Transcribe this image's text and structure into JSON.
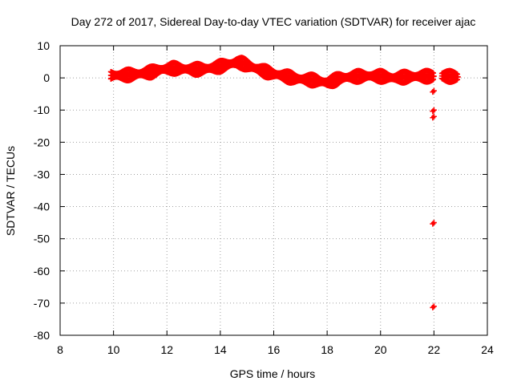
{
  "chart_data": {
    "type": "scatter",
    "title": "Day 272 of 2017, Sidereal Day-to-day VTEC variation (SDTVAR) for receiver ajac",
    "xlabel": "GPS time / hours",
    "ylabel": "SDTVAR / TECUs",
    "xlim": [
      8,
      24
    ],
    "ylim": [
      -80,
      10
    ],
    "grid": true,
    "xticks": [
      8,
      10,
      12,
      14,
      16,
      18,
      20,
      22,
      24
    ],
    "yticks": [
      10,
      0,
      -10,
      -20,
      -30,
      -40,
      -50,
      -60,
      -70,
      -80
    ],
    "marker": "+",
    "color": "#ff0000",
    "series": [
      {
        "name": "SDTVAR",
        "trend": [
          [
            9.9,
            0.8
          ],
          [
            10.3,
            0.8
          ],
          [
            10.7,
            1.0
          ],
          [
            11.0,
            1.3
          ],
          [
            11.4,
            1.8
          ],
          [
            11.8,
            2.6
          ],
          [
            12.2,
            3.0
          ],
          [
            12.6,
            2.8
          ],
          [
            13.0,
            2.6
          ],
          [
            13.4,
            2.8
          ],
          [
            13.8,
            3.2
          ],
          [
            14.2,
            4.0
          ],
          [
            14.6,
            4.8
          ],
          [
            14.8,
            4.6
          ],
          [
            15.0,
            4.0
          ],
          [
            15.3,
            3.0
          ],
          [
            15.6,
            2.2
          ],
          [
            16.0,
            1.2
          ],
          [
            16.4,
            0.6
          ],
          [
            16.8,
            -0.2
          ],
          [
            17.2,
            -0.5
          ],
          [
            17.6,
            -0.8
          ],
          [
            18.0,
            -1.5
          ],
          [
            18.2,
            -1.0
          ],
          [
            18.5,
            0.0
          ],
          [
            18.8,
            0.2
          ],
          [
            19.2,
            0.5
          ],
          [
            19.6,
            0.6
          ],
          [
            20.0,
            0.5
          ],
          [
            20.5,
            0.0
          ],
          [
            21.0,
            0.3
          ],
          [
            21.5,
            0.5
          ],
          [
            22.0,
            0.5
          ]
        ],
        "trend_tail": [
          [
            22.3,
            0.6
          ],
          [
            22.9,
            0.3
          ]
        ],
        "outliers": [
          [
            22.0,
            -4
          ],
          [
            22.0,
            -10
          ],
          [
            22.0,
            -12
          ],
          [
            22.0,
            -45
          ],
          [
            22.0,
            -71
          ]
        ]
      }
    ]
  }
}
